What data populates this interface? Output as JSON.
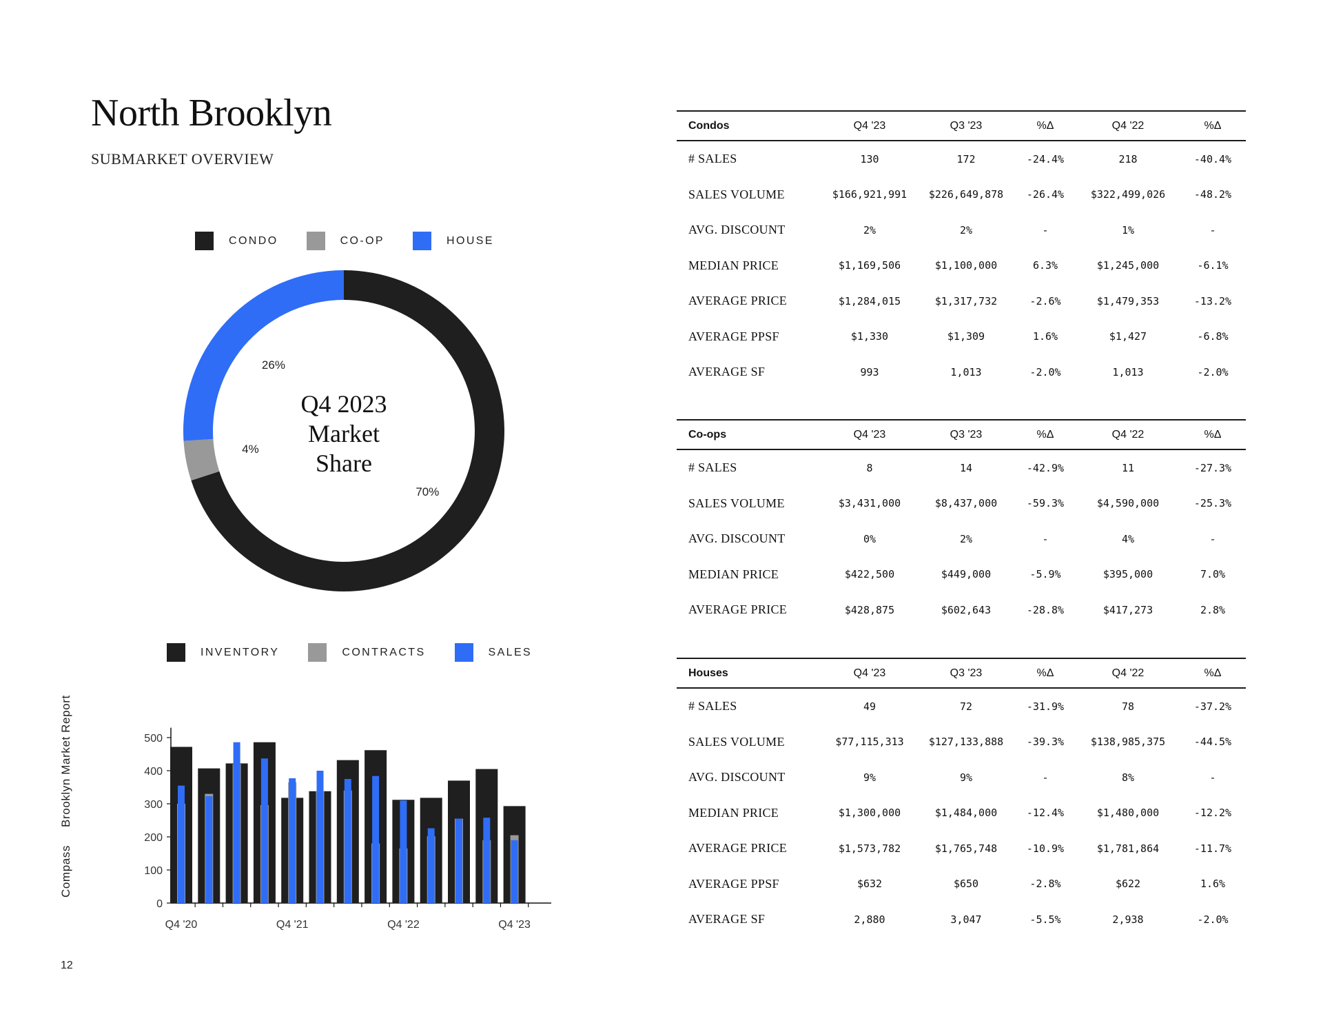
{
  "header": {
    "title": "North Brooklyn",
    "subtitle": "SUBMARKET OVERVIEW"
  },
  "donut": {
    "center_line1": "Q4 2023",
    "center_line2": "Market",
    "center_line3": "Share",
    "legend": [
      {
        "label": "CONDO",
        "color": "#1f1f1f"
      },
      {
        "label": "CO-OP",
        "color": "#999999"
      },
      {
        "label": "HOUSE",
        "color": "#2f6df6"
      }
    ]
  },
  "bar_legend": [
    {
      "label": "INVENTORY",
      "color": "#1f1f1f"
    },
    {
      "label": "CONTRACTS",
      "color": "#999999"
    },
    {
      "label": "SALES",
      "color": "#2f6df6"
    }
  ],
  "chart_data": [
    {
      "type": "pie",
      "title": "Q4 2023 Market Share",
      "labels": [
        "CONDO",
        "CO-OP",
        "HOUSE"
      ],
      "values": [
        70,
        4,
        26
      ],
      "value_labels": [
        "70%",
        "4%",
        "26%"
      ],
      "colors": [
        "#1f1f1f",
        "#999999",
        "#2f6df6"
      ]
    },
    {
      "type": "bar",
      "categories": [
        "Q4 '20",
        "Q1 '21",
        "Q2 '21",
        "Q3 '21",
        "Q4 '21",
        "Q1 '22",
        "Q2 '22",
        "Q3 '22",
        "Q4 '22",
        "Q1 '23",
        "Q2 '23",
        "Q3 '23",
        "Q4 '23"
      ],
      "tick_labels": [
        "Q4 '20",
        "Q4 '21",
        "Q4 '22",
        "Q4 '23"
      ],
      "series": [
        {
          "name": "INVENTORY",
          "color": "#1f1f1f",
          "values": [
            472,
            407,
            422,
            486,
            318,
            338,
            432,
            462,
            312,
            318,
            370,
            405,
            293
          ]
        },
        {
          "name": "CONTRACTS",
          "color": "#999999",
          "values": [
            300,
            330,
            420,
            296,
            365,
            338,
            340,
            180,
            165,
            202,
            255,
            190,
            205
          ]
        },
        {
          "name": "SALES",
          "color": "#2f6df6",
          "values": [
            355,
            323,
            486,
            437,
            377,
            400,
            375,
            384,
            310,
            226,
            255,
            258,
            190
          ]
        }
      ],
      "yticks": [
        0,
        100,
        200,
        300,
        400,
        500
      ],
      "ylim": [
        0,
        530
      ]
    }
  ],
  "sidebar": {
    "brand": "Compass",
    "report": "Brooklyn Market Report"
  },
  "page_number": "12",
  "tables": {
    "condos": {
      "headers": [
        "Condos",
        "Q4 '23",
        "Q3 '23",
        "%Δ",
        "Q4 '22",
        "%Δ"
      ],
      "rows": [
        [
          "# SALES",
          "130",
          "172",
          "-24.4%",
          "218",
          "-40.4%"
        ],
        [
          "SALES VOLUME",
          "$166,921,991",
          "$226,649,878",
          "-26.4%",
          "$322,499,026",
          "-48.2%"
        ],
        [
          "AVG. DISCOUNT",
          "2%",
          "2%",
          "-",
          "1%",
          "-"
        ],
        [
          "MEDIAN PRICE",
          "$1,169,506",
          "$1,100,000",
          "6.3%",
          "$1,245,000",
          "-6.1%"
        ],
        [
          "AVERAGE PRICE",
          "$1,284,015",
          "$1,317,732",
          "-2.6%",
          "$1,479,353",
          "-13.2%"
        ],
        [
          "AVERAGE PPSF",
          "$1,330",
          "$1,309",
          "1.6%",
          "$1,427",
          "-6.8%"
        ],
        [
          "AVERAGE SF",
          "993",
          "1,013",
          "-2.0%",
          "1,013",
          "-2.0%"
        ]
      ]
    },
    "coops": {
      "headers": [
        "Co-ops",
        "Q4 '23",
        "Q3 '23",
        "%Δ",
        "Q4 '22",
        "%Δ"
      ],
      "rows": [
        [
          "# SALES",
          "8",
          "14",
          "-42.9%",
          "11",
          "-27.3%"
        ],
        [
          "SALES VOLUME",
          "$3,431,000",
          "$8,437,000",
          "-59.3%",
          "$4,590,000",
          "-25.3%"
        ],
        [
          "AVG. DISCOUNT",
          "0%",
          "2%",
          "-",
          "4%",
          "-"
        ],
        [
          "MEDIAN PRICE",
          "$422,500",
          "$449,000",
          "-5.9%",
          "$395,000",
          "7.0%"
        ],
        [
          "AVERAGE PRICE",
          "$428,875",
          "$602,643",
          "-28.8%",
          "$417,273",
          "2.8%"
        ]
      ]
    },
    "houses": {
      "headers": [
        "Houses",
        "Q4 '23",
        "Q3 '23",
        "%Δ",
        "Q4 '22",
        "%Δ"
      ],
      "rows": [
        [
          "# SALES",
          "49",
          "72",
          "-31.9%",
          "78",
          "-37.2%"
        ],
        [
          "SALES VOLUME",
          "$77,115,313",
          "$127,133,888",
          "-39.3%",
          "$138,985,375",
          "-44.5%"
        ],
        [
          "AVG. DISCOUNT",
          "9%",
          "9%",
          "-",
          "8%",
          "-"
        ],
        [
          "MEDIAN PRICE",
          "$1,300,000",
          "$1,484,000",
          "-12.4%",
          "$1,480,000",
          "-12.2%"
        ],
        [
          "AVERAGE PRICE",
          "$1,573,782",
          "$1,765,748",
          "-10.9%",
          "$1,781,864",
          "-11.7%"
        ],
        [
          "AVERAGE PPSF",
          "$632",
          "$650",
          "-2.8%",
          "$622",
          "1.6%"
        ],
        [
          "AVERAGE SF",
          "2,880",
          "3,047",
          "-5.5%",
          "2,938",
          "-2.0%"
        ]
      ]
    }
  }
}
